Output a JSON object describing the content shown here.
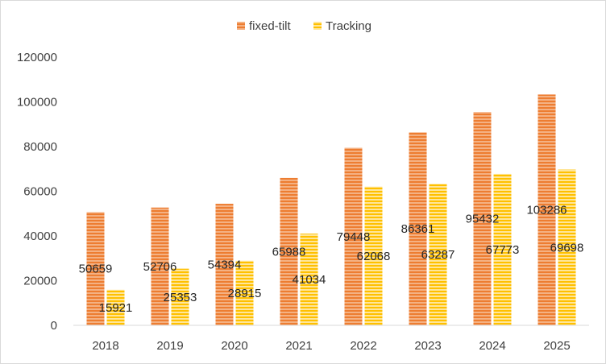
{
  "chart_data": {
    "type": "bar",
    "categories": [
      "2018",
      "2019",
      "2020",
      "2021",
      "2022",
      "2023",
      "2024",
      "2025"
    ],
    "series": [
      {
        "name": "fixed-tilt",
        "values": [
          50659,
          52706,
          54394,
          65988,
          79448,
          86361,
          95432,
          103286
        ],
        "color": "#ed7d31",
        "pattern": "horizontal-stripes"
      },
      {
        "name": "Tracking",
        "values": [
          15921,
          25353,
          28915,
          41034,
          62068,
          63287,
          67773,
          69698
        ],
        "color": "#ffc000",
        "pattern": "horizontal-stripes"
      }
    ],
    "title": "",
    "xlabel": "",
    "ylabel": "",
    "ylim": [
      0,
      120000
    ],
    "yticks": [
      "0",
      "20000",
      "40000",
      "60000",
      "80000",
      "100000",
      "120000"
    ],
    "grid": false,
    "legend": "top-center",
    "data_labels": true
  }
}
